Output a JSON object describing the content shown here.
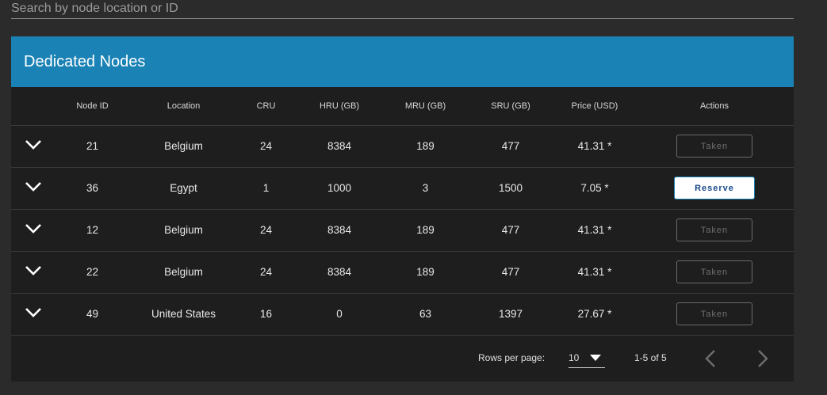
{
  "search": {
    "placeholder": "Search by node location or ID"
  },
  "card": {
    "title": "Dedicated Nodes"
  },
  "table": {
    "columns": [
      "Node ID",
      "Location",
      "CRU",
      "HRU (GB)",
      "MRU (GB)",
      "SRU (GB)",
      "Price (USD)",
      "Actions"
    ],
    "rows": [
      {
        "node_id": "21",
        "location": "Belgium",
        "cru": "24",
        "hru": "8384",
        "mru": "189",
        "sru": "477",
        "price": "41.31 *",
        "action": "Taken"
      },
      {
        "node_id": "36",
        "location": "Egypt",
        "cru": "1",
        "hru": "1000",
        "mru": "3",
        "sru": "1500",
        "price": "7.05 *",
        "action": "Reserve"
      },
      {
        "node_id": "12",
        "location": "Belgium",
        "cru": "24",
        "hru": "8384",
        "mru": "189",
        "sru": "477",
        "price": "41.31 *",
        "action": "Taken"
      },
      {
        "node_id": "22",
        "location": "Belgium",
        "cru": "24",
        "hru": "8384",
        "mru": "189",
        "sru": "477",
        "price": "41.31 *",
        "action": "Taken"
      },
      {
        "node_id": "49",
        "location": "United States",
        "cru": "16",
        "hru": "0",
        "mru": "63",
        "sru": "1397",
        "price": "27.67 *",
        "action": "Taken"
      }
    ]
  },
  "pagination": {
    "rows_per_page_label": "Rows per page:",
    "rows_per_page_value": "10",
    "range_text": "1-5 of 5"
  },
  "icons": {
    "expand": "chevron-down-icon",
    "rpp_caret": "caret-down-icon",
    "prev": "chevron-left-icon",
    "next": "chevron-right-icon"
  },
  "colors": {
    "accent": "#1a82b5",
    "card_bg": "#1e1e1e",
    "page_bg": "#2b2b2b"
  }
}
